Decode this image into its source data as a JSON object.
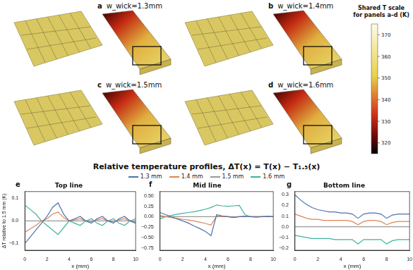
{
  "panels": [
    {
      "label": "a",
      "title": "w_wick=1.3mm"
    },
    {
      "label": "b",
      "title": "w_wick=1.4mm"
    },
    {
      "label": "c",
      "title": "w_wick=1.5mm"
    },
    {
      "label": "d",
      "title": "w_wick=1.6mm"
    }
  ],
  "colorbar": {
    "title": "Shared T scale for panels a–d (K)",
    "range": [
      315,
      375
    ],
    "ticks": [
      320,
      330,
      340,
      350,
      360,
      370
    ]
  },
  "profiles_title": "Relative temperature profiles, ΔT(x) = T(x) − T₁.₅(x)",
  "chart_data": [
    {
      "type": "line",
      "label": "e",
      "title": "Top line",
      "x_label": "x (mm)",
      "y_label": "ΔT relative to 1.5 mm (K)",
      "x": [
        0,
        0.5,
        1,
        1.5,
        2,
        2.5,
        3,
        3.5,
        4,
        4.5,
        5,
        5.5,
        6,
        6.5,
        7,
        7.5,
        8,
        8.5,
        9,
        9.5,
        10
      ],
      "xlim": [
        0,
        10
      ],
      "xticks": [
        0,
        2,
        4,
        6,
        8,
        10
      ],
      "ylim": [
        -0.13,
        0.13
      ],
      "yticks": [
        {
          "value": -0.1,
          "label": "−0.1"
        },
        {
          "value": 0,
          "label": "0.0"
        },
        0.1
      ],
      "grid": false,
      "series": [
        {
          "name": "1.3 mm",
          "color": "#4c72b0",
          "values": [
            -0.1,
            -0.07,
            -0.04,
            -0.01,
            0.02,
            0.06,
            0.08,
            0.03,
            0.0,
            0.01,
            0.02,
            0.0,
            -0.01,
            0.01,
            0.02,
            0.0,
            -0.01,
            0.01,
            0.02,
            0.0,
            -0.01
          ]
        },
        {
          "name": "1.4 mm",
          "color": "#dd8452",
          "values": [
            -0.05,
            -0.035,
            -0.02,
            0.0,
            0.01,
            0.03,
            0.04,
            0.015,
            0.0,
            0.005,
            0.01,
            0.0,
            -0.005,
            0.005,
            0.01,
            0.0,
            -0.005,
            0.005,
            0.01,
            0.0,
            -0.005
          ]
        },
        {
          "name": "1.5 mm",
          "color": "#999999",
          "values": [
            0,
            0,
            0,
            0,
            0,
            0,
            0,
            0,
            0,
            0,
            0,
            0,
            0,
            0,
            0,
            0,
            0,
            0,
            0,
            0,
            0
          ]
        },
        {
          "name": "1.6 mm",
          "color": "#3cb39a",
          "values": [
            0.07,
            0.05,
            0.03,
            0.0,
            -0.02,
            -0.04,
            -0.06,
            -0.03,
            0.0,
            -0.01,
            -0.02,
            0.0,
            0.01,
            -0.01,
            -0.02,
            0.0,
            0.01,
            -0.01,
            -0.02,
            0.0,
            0.01
          ]
        }
      ]
    },
    {
      "type": "line",
      "label": "f",
      "title": "Mid line",
      "x_label": "x (mm)",
      "x": [
        0,
        0.5,
        1,
        1.5,
        2,
        2.5,
        3,
        3.5,
        4,
        4.5,
        5,
        5.5,
        6,
        6.5,
        7,
        7.5,
        8,
        8.5,
        9,
        9.5,
        10
      ],
      "xlim": [
        0,
        10
      ],
      "xticks": [
        0,
        2,
        4,
        6,
        8,
        10
      ],
      "ylim": [
        -0.8,
        0.6
      ],
      "yticks": [
        {
          "value": -0.75,
          "label": "−0.75"
        },
        {
          "value": -0.5,
          "label": "−0.50"
        },
        {
          "value": -0.25,
          "label": "−0.25"
        },
        {
          "value": 0,
          "label": "0.00"
        },
        0.25,
        {
          "value": 0.5,
          "label": "0.50"
        }
      ],
      "grid": false,
      "series": [
        {
          "name": "1.3 mm",
          "color": "#4c72b0",
          "values": [
            0.1,
            0.05,
            0.0,
            -0.05,
            -0.1,
            -0.15,
            -0.22,
            -0.28,
            -0.35,
            -0.45,
            0.05,
            0.02,
            0.0,
            -0.02,
            0.0,
            0.01,
            0.0,
            -0.01,
            0.0,
            0.01,
            0.0
          ]
        },
        {
          "name": "1.4 mm",
          "color": "#dd8452",
          "values": [
            0.03,
            0.0,
            -0.02,
            -0.04,
            -0.06,
            -0.08,
            -0.1,
            -0.13,
            -0.16,
            -0.2,
            0.02,
            0.01,
            0.0,
            -0.01,
            0.0,
            0.0,
            0.0,
            0.0,
            0.0,
            0.0,
            0.0
          ]
        },
        {
          "name": "1.5 mm",
          "color": "#999999",
          "values": [
            0,
            0,
            0,
            0,
            0,
            0,
            0,
            0,
            0,
            0,
            0,
            0,
            0,
            0,
            0,
            0,
            0,
            0,
            0,
            0,
            0
          ]
        },
        {
          "name": "1.6 mm",
          "color": "#3cb39a",
          "values": [
            -0.05,
            0.0,
            0.03,
            0.06,
            0.08,
            0.1,
            0.12,
            0.15,
            0.18,
            0.22,
            0.28,
            0.26,
            0.25,
            0.26,
            0.27,
            0.05,
            0.0,
            0.0,
            0.0,
            0.01,
            0.0
          ]
        }
      ]
    },
    {
      "type": "line",
      "label": "g",
      "title": "Bottom line",
      "x_label": "x (mm)",
      "x": [
        0,
        0.5,
        1,
        1.5,
        2,
        2.5,
        3,
        3.5,
        4,
        4.5,
        5,
        5.5,
        6,
        6.5,
        7,
        7.5,
        8,
        8.5,
        9,
        9.5,
        10
      ],
      "xlim": [
        0,
        10
      ],
      "xticks": [
        0,
        2,
        4,
        6,
        8,
        10
      ],
      "ylim": [
        -0.22,
        0.33
      ],
      "yticks": [
        {
          "value": -0.2,
          "label": "−0.2"
        },
        {
          "value": -0.1,
          "label": "−0.1"
        },
        {
          "value": 0,
          "label": "0.0"
        },
        0.1,
        0.2,
        0.3
      ],
      "grid": false,
      "series": [
        {
          "name": "1.3 mm",
          "color": "#4c72b0",
          "values": [
            0.3,
            0.25,
            0.21,
            0.18,
            0.16,
            0.15,
            0.14,
            0.14,
            0.13,
            0.13,
            0.12,
            0.08,
            0.12,
            0.13,
            0.13,
            0.12,
            0.08,
            0.11,
            0.12,
            0.12,
            0.12
          ]
        },
        {
          "name": "1.4 mm",
          "color": "#dd8452",
          "values": [
            0.12,
            0.1,
            0.08,
            0.07,
            0.07,
            0.06,
            0.06,
            0.06,
            0.06,
            0.06,
            0.05,
            0.02,
            0.05,
            0.06,
            0.06,
            0.05,
            0.02,
            0.04,
            0.05,
            0.05,
            0.05
          ]
        },
        {
          "name": "1.5 mm",
          "color": "#999999",
          "values": [
            0,
            0,
            0,
            0,
            0,
            0,
            0,
            0,
            0,
            0,
            0,
            0,
            0,
            0,
            0,
            0,
            0,
            0,
            0,
            0,
            0
          ]
        },
        {
          "name": "1.6 mm",
          "color": "#3cb39a",
          "values": [
            -0.08,
            -0.09,
            -0.1,
            -0.11,
            -0.11,
            -0.11,
            -0.11,
            -0.12,
            -0.12,
            -0.12,
            -0.12,
            -0.16,
            -0.12,
            -0.12,
            -0.12,
            -0.12,
            -0.16,
            -0.13,
            -0.12,
            -0.12,
            -0.12
          ]
        }
      ]
    }
  ]
}
